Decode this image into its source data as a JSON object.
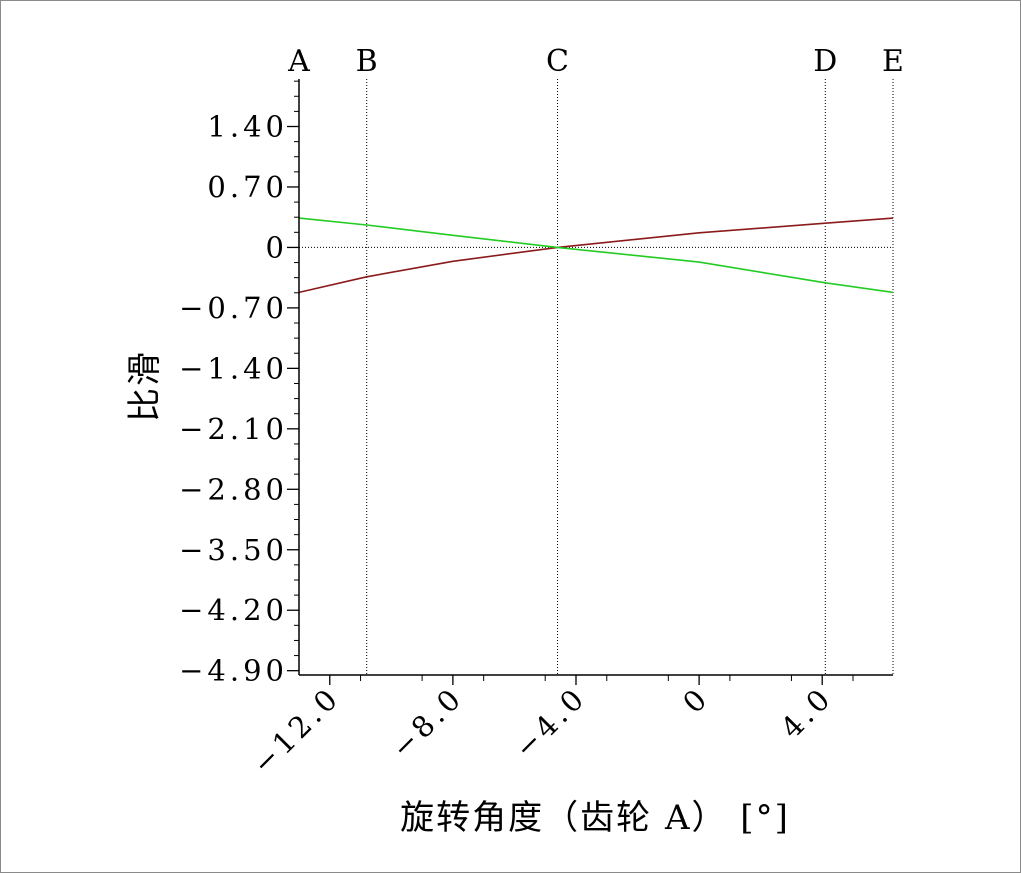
{
  "chart_data": {
    "type": "line",
    "xlabel": "旋转角度（齿轮 A） [°]",
    "ylabel": "比滑",
    "xlim": [
      -13.0,
      6.3
    ],
    "ylim": [
      -4.95,
      1.95
    ],
    "x_ticks": [
      -12.0,
      -8.0,
      -4.0,
      0,
      4.0
    ],
    "x_tick_labels": [
      "−12.0",
      "−8.0",
      "−4.0",
      "0",
      "4.0"
    ],
    "y_ticks": [
      1.4,
      0.7,
      0,
      -0.7,
      -1.4,
      -2.1,
      -2.8,
      -3.5,
      -4.2,
      -4.9
    ],
    "y_tick_labels": [
      "1.40",
      "0.70",
      "0",
      "−0.70",
      "−1.40",
      "−2.10",
      "−2.80",
      "−3.50",
      "−4.20",
      "−4.90"
    ],
    "markers": [
      {
        "label": "A",
        "x": -13.0
      },
      {
        "label": "B",
        "x": -10.8
      },
      {
        "label": "C",
        "x": -4.6
      },
      {
        "label": "D",
        "x": 4.1
      },
      {
        "label": "E",
        "x": 6.3
      }
    ],
    "series": [
      {
        "color": "#8b1a1a",
        "x": [
          -13.0,
          -10.8,
          -8.0,
          -4.6,
          0,
          4.1,
          6.3
        ],
        "y": [
          -0.52,
          -0.34,
          -0.16,
          0.0,
          0.17,
          0.28,
          0.34
        ]
      },
      {
        "color": "#22cc22",
        "x": [
          -13.0,
          -10.8,
          -8.0,
          -4.6,
          0,
          4.1,
          6.3
        ],
        "y": [
          0.34,
          0.26,
          0.14,
          0.0,
          -0.17,
          -0.41,
          -0.52
        ]
      }
    ]
  }
}
